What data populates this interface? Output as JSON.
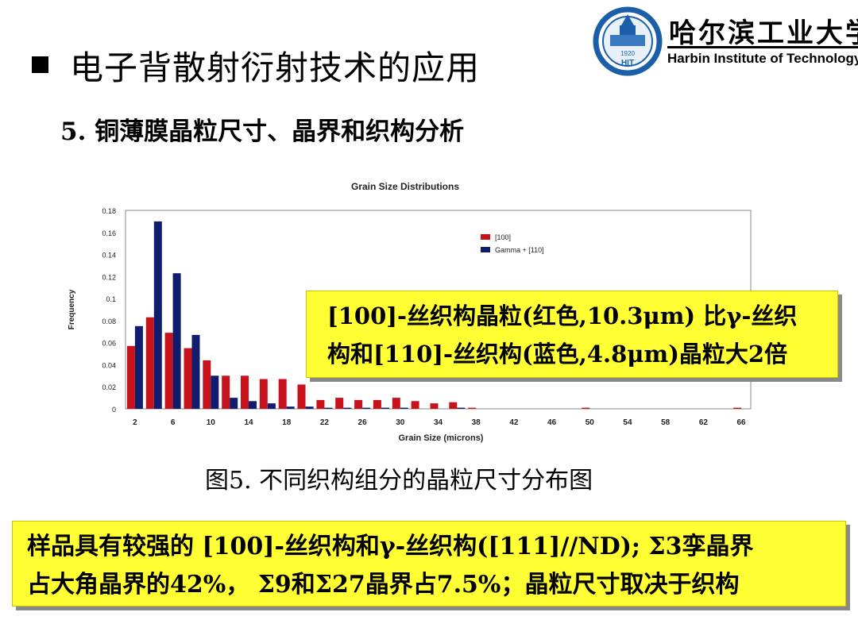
{
  "slide": {
    "title": "电子背散射衍射技术的应用",
    "subtitle": "5. 铜薄膜晶粒尺寸、晶界和织构分析",
    "caption": "图5. 不同织构组分的晶粒尺寸分布图"
  },
  "logo": {
    "cn_name": "哈尔滨工业大学",
    "en_name": "Harbin Institute of Technology",
    "emblem_year": "1920",
    "emblem_abbr": "HIT"
  },
  "callout_1": {
    "line1": "[100]-丝织构晶粒(红色,10.3μm) 比γ-丝织",
    "line2": "构和[110]-丝织构(蓝色,4.8μm)晶粒大2倍"
  },
  "callout_2": {
    "line1": "样品具有较强的 [100]-丝织构和γ-丝织构([111]//ND); Σ3孪晶界",
    "line2": "占大角晶界的42%， Σ9和Σ27晶界占7.5%；晶粒尺寸取决于织构"
  },
  "colors": {
    "red_series": "#c8121b",
    "blue_series": "#101c6e",
    "callout_bg": "#ffff33"
  },
  "chart_data": {
    "type": "bar",
    "title": "Grain Size Distributions",
    "xlabel": "Grain Size (microns)",
    "ylabel": "Frequency",
    "ylim": [
      0,
      0.18
    ],
    "yticks": [
      "0.18",
      "0.16",
      "0.14",
      "0.12",
      "0.1",
      "0.08",
      "0.06",
      "0.04",
      "0.02",
      "0"
    ],
    "x_tick_labels": [
      "2",
      "6",
      "10",
      "14",
      "18",
      "22",
      "26",
      "30",
      "34",
      "38",
      "42",
      "46",
      "50",
      "54",
      "58",
      "62",
      "66"
    ],
    "categories": [
      2,
      4,
      6,
      8,
      10,
      12,
      14,
      16,
      18,
      20,
      22,
      24,
      26,
      28,
      30,
      32,
      34,
      36,
      38,
      40,
      42,
      44,
      46,
      48,
      50,
      52,
      54,
      56,
      58,
      60,
      62,
      64,
      66
    ],
    "series": [
      {
        "name": "[100]",
        "color": "red",
        "values": [
          0.057,
          0.083,
          0.069,
          0.055,
          0.044,
          0.03,
          0.03,
          0.027,
          0.027,
          0.022,
          0.008,
          0.01,
          0.008,
          0.008,
          0.01,
          0.007,
          0.005,
          0.006,
          0.001,
          0.0,
          0.0,
          0.0,
          0.0,
          0.0,
          0.001,
          0.0,
          0.0,
          0.0,
          0.0,
          0.0,
          0.0,
          0.0,
          0.001
        ]
      },
      {
        "name": "Gamma + [110]",
        "color": "blue",
        "values": [
          0.075,
          0.17,
          0.123,
          0.067,
          0.03,
          0.01,
          0.007,
          0.005,
          0.002,
          0.002,
          0.001,
          0.001,
          0.001,
          0.001,
          0.001,
          0.0,
          0.0,
          0.001,
          0.0,
          0.0,
          0.0,
          0.0,
          0.0,
          0.0,
          0.0,
          0.0,
          0.0,
          0.0,
          0.0,
          0.0,
          0.0,
          0.0,
          0.0
        ]
      }
    ],
    "legend_position": "top-right",
    "grid": false
  }
}
